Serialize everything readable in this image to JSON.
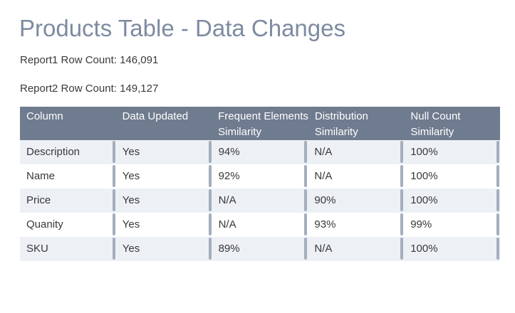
{
  "page": {
    "title": "Products Table - Data Changes",
    "reports": [
      {
        "label": "Report1 Row Count:",
        "value": "146,091"
      },
      {
        "label": "Report2 Row Count:",
        "value": "149,127"
      }
    ]
  },
  "colors": {
    "title_text": "#7d8ba1",
    "header_bg": "#6f7b8e",
    "header_text": "#ffffff",
    "row_alt_bg": "#edf1f6",
    "divider": "#a3aebd",
    "body_text": "#383838"
  },
  "table": {
    "columns": [
      {
        "line1": "Column",
        "line2": ""
      },
      {
        "line1": "Data Updated",
        "line2": ""
      },
      {
        "line1": "Frequent Elements",
        "line2": "Similarity"
      },
      {
        "line1": "Distribution",
        "line2": "Similarity"
      },
      {
        "line1": "Null Count",
        "line2": "Similarity"
      }
    ],
    "rows": [
      [
        "Description",
        "Yes",
        "94%",
        "N/A",
        "100%"
      ],
      [
        "Name",
        "Yes",
        "92%",
        "N/A",
        "100%"
      ],
      [
        "Price",
        "Yes",
        "N/A",
        "90%",
        "100%"
      ],
      [
        "Quanity",
        "Yes",
        "N/A",
        "93%",
        "99%"
      ],
      [
        "SKU",
        "Yes",
        "89%",
        "N/A",
        "100%"
      ]
    ]
  }
}
